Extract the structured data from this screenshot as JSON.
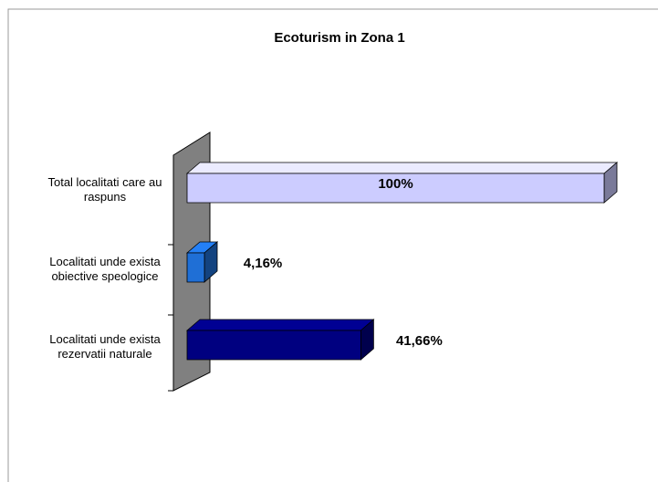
{
  "chart_data": {
    "type": "hbar3d",
    "title": "Ecoturism in Zona 1",
    "categories": [
      "Total localitati care au raspuns",
      "Localitati unde exista obiective speologice",
      "Localitati unde exista rezervatii naturale"
    ],
    "values": [
      100,
      4.16,
      41.66
    ],
    "value_labels": [
      "100%",
      "4,16%",
      "41,66%"
    ],
    "colors": [
      "#ccccff",
      "#1f6fd6",
      "#000080"
    ],
    "xlim": [
      0,
      100
    ]
  }
}
